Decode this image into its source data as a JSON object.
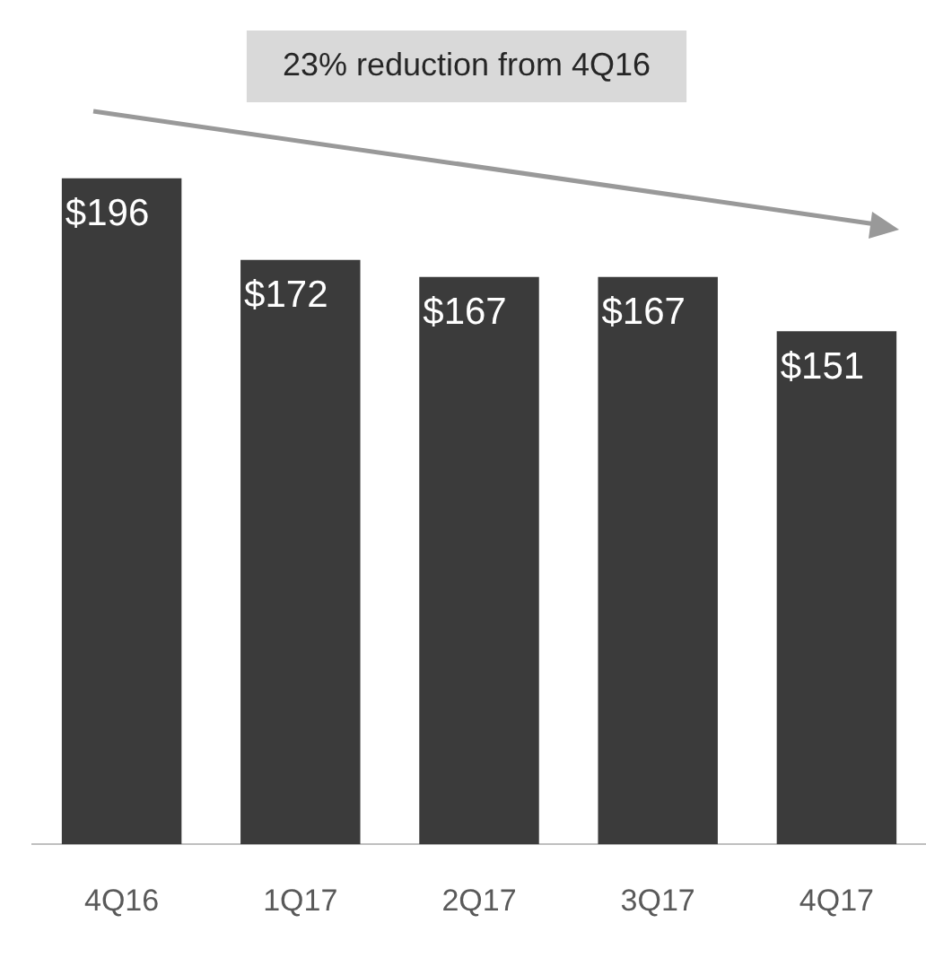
{
  "chart_data": {
    "type": "bar",
    "categories": [
      "4Q16",
      "1Q17",
      "2Q17",
      "3Q17",
      "4Q17"
    ],
    "values": [
      196,
      172,
      167,
      167,
      151
    ],
    "color": "#3b3b3b",
    "value_labels": [
      "$196",
      "$172",
      "$167",
      "$167",
      "$151"
    ],
    "annotations": [
      "23% reduction from 4Q16"
    ],
    "grid": false,
    "legend": false
  }
}
